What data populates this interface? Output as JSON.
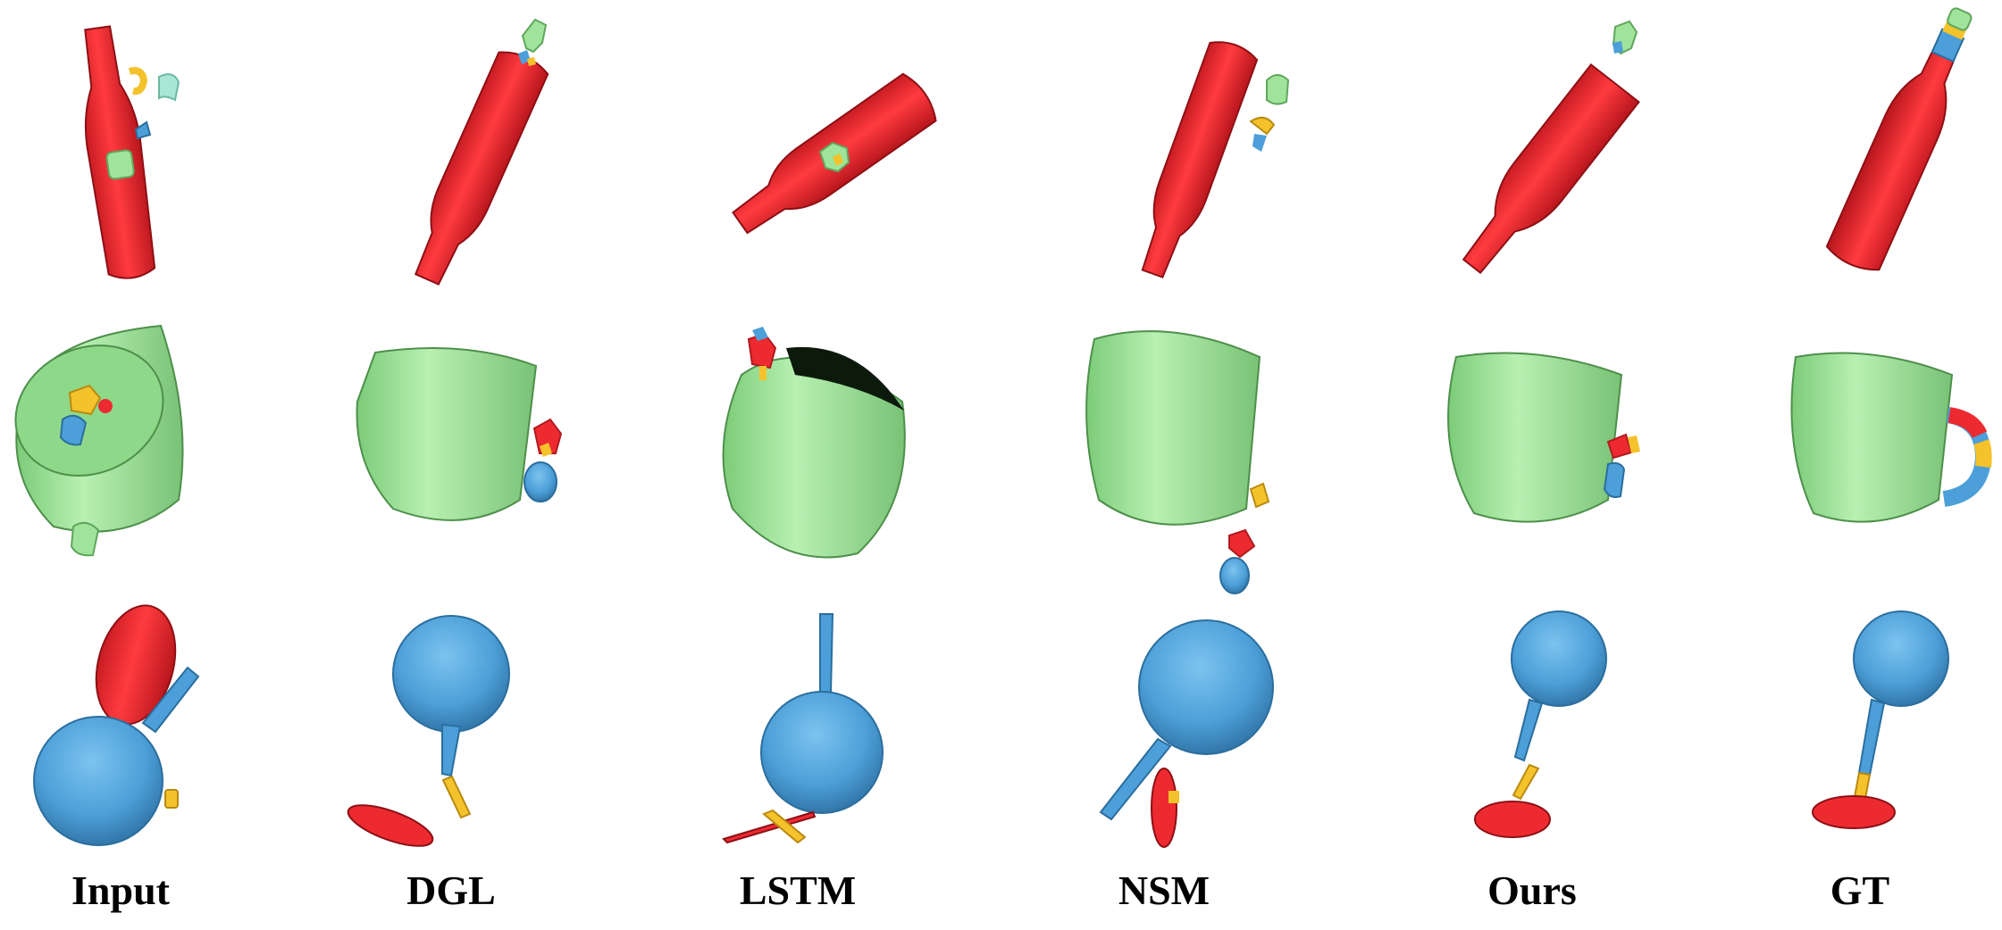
{
  "figure": {
    "columns": [
      {
        "key": "input",
        "label": "Input"
      },
      {
        "key": "dgl",
        "label": "DGL"
      },
      {
        "key": "lstm",
        "label": "LSTM"
      },
      {
        "key": "nsm",
        "label": "NSM"
      },
      {
        "key": "ours",
        "label": "Ours"
      },
      {
        "key": "gt",
        "label": "GT"
      }
    ],
    "rows": [
      {
        "key": "bottle"
      },
      {
        "key": "mug"
      },
      {
        "key": "wineglass"
      }
    ],
    "colors": {
      "red": "#ee2a31",
      "red_dark": "#b01a20",
      "green": "#9fe49a",
      "green_dark": "#5fa65c",
      "blue": "#4c9fd8",
      "blue_dark": "#2b6e9e",
      "yellow": "#f4c22b",
      "yellow_dark": "#b88a10",
      "mint": "#a9e6d5"
    }
  }
}
